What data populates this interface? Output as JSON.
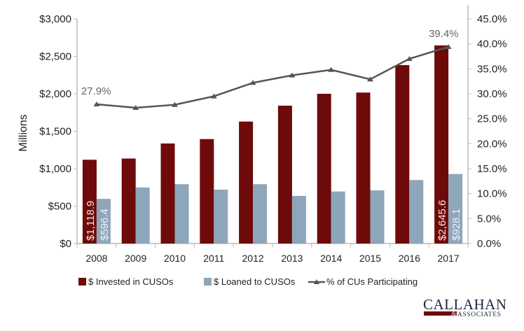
{
  "chart_data": {
    "type": "bar+line",
    "categories": [
      "2008",
      "2009",
      "2010",
      "2011",
      "2012",
      "2013",
      "2014",
      "2015",
      "2016",
      "2017"
    ],
    "series": [
      {
        "name": "$ Invested in CUSOs",
        "type": "bar",
        "axis": "left",
        "color": "#6e0a0a",
        "values": [
          1118.9,
          1135,
          1336,
          1395,
          1629,
          1841,
          2000,
          2016,
          2383,
          2645.6
        ]
      },
      {
        "name": "$ Loaned to CUSOs",
        "type": "bar",
        "axis": "left",
        "color": "#8ea6ba",
        "values": [
          596.4,
          748,
          792,
          720,
          792,
          636,
          695,
          710,
          848,
          928.1
        ]
      },
      {
        "name": "% of CUs Participating",
        "type": "line",
        "axis": "right",
        "color": "#555555",
        "values": [
          27.9,
          27.2,
          27.8,
          29.5,
          32.2,
          33.7,
          34.8,
          32.9,
          37.0,
          39.4
        ]
      }
    ],
    "data_labels": {
      "invested_2008": "$1,118.9",
      "loaned_2008": "$596.4",
      "invested_2017": "$2,645.6",
      "loaned_2017": "$928.1",
      "pct_2008": "27.9%",
      "pct_2017": "39.4%"
    },
    "ylabel": "Millions",
    "ylim": [
      0,
      3000
    ],
    "y_ticks": [
      "$0",
      "$500",
      "$1,000",
      "$1,500",
      "$2,000",
      "$2,500",
      "$3,000"
    ],
    "y2lim": [
      0,
      45
    ],
    "y2_ticks": [
      "0.0%",
      "5.0%",
      "10.0%",
      "15.0%",
      "20.0%",
      "25.0%",
      "30.0%",
      "35.0%",
      "40.0%",
      "45.0%"
    ],
    "grid": false,
    "legend_position": "bottom"
  },
  "logo": {
    "name": "CALLAHAN",
    "sub": "ASSOCIATES",
    "amp": "&"
  }
}
